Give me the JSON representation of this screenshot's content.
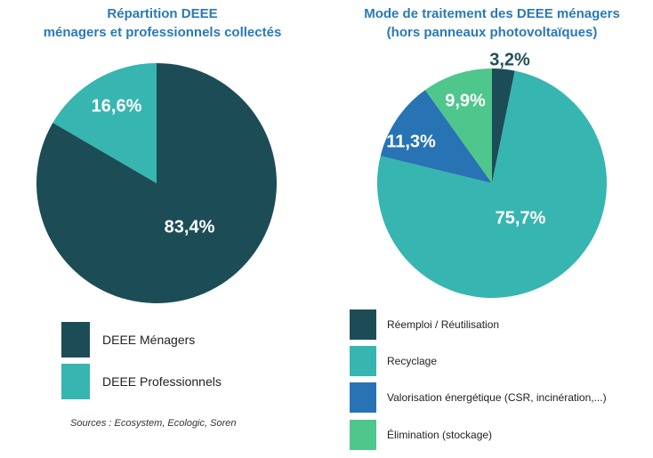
{
  "colors": {
    "dark_teal": "#1c4d57",
    "teal": "#37b5b0",
    "blue": "#2873b4",
    "green": "#4ec68c",
    "title_blue": "#2a79b5"
  },
  "chart_data": [
    {
      "type": "pie",
      "title": "Répartition DEEE",
      "subtitle": "ménagers et professionnels collectés",
      "slices": [
        {
          "label": "DEEE Ménagers",
          "value": 83.4,
          "value_label": "83,4%",
          "color": "#1c4d57"
        },
        {
          "label": "DEEE Professionnels",
          "value": 16.6,
          "value_label": "16,6%",
          "color": "#37b5b0"
        }
      ],
      "legend_position": "bottom"
    },
    {
      "type": "pie",
      "title": "Mode de traitement des DEEE ménagers",
      "subtitle": "(hors panneaux photovoltaïques)",
      "slices": [
        {
          "label": "Réemploi / Réutilisation",
          "value": 3.2,
          "value_label": "3,2%",
          "color": "#1c4d57"
        },
        {
          "label": "Recyclage",
          "value": 75.7,
          "value_label": "75,7%",
          "color": "#37b5b0"
        },
        {
          "label": "Valorisation énergétique (CSR, incinération,...)",
          "value": 11.3,
          "value_label": "11,3%",
          "color": "#2873b4"
        },
        {
          "label": "Élimination (stockage)",
          "value": 9.9,
          "value_label": "9,9%",
          "color": "#4ec68c"
        }
      ],
      "legend_position": "bottom"
    }
  ],
  "source": "Sources : Ecosystem, Ecologic, Soren"
}
